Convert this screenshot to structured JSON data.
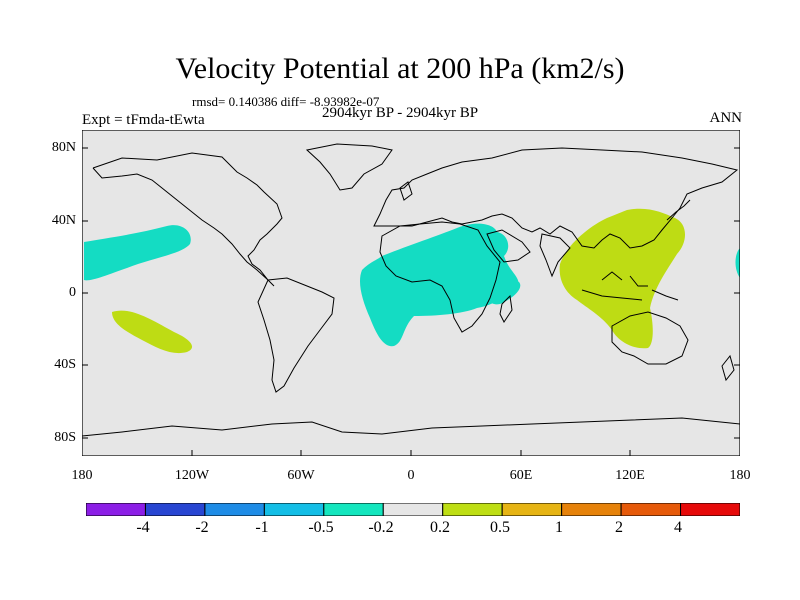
{
  "title": "Velocity Potential at 200 hPa (km2/s)",
  "stats": "rmsd= 0.140386 diff= -8.93982e-07",
  "experiment": "Expt = tFmda-tEwta",
  "period": "2904kyr BP - 2904kyr BP",
  "season": "ANN",
  "lat_labels": [
    "80N",
    "40N",
    "0",
    "40S",
    "80S"
  ],
  "lon_labels": [
    "180",
    "120W",
    "60W",
    "0",
    "60E",
    "120E",
    "180"
  ],
  "colorbar": {
    "colors": [
      "#8c1ee6",
      "#2846d2",
      "#1e8ce6",
      "#14bee6",
      "#14e6be",
      "#e6e6e6",
      "#bede14",
      "#e6b414",
      "#e6820a",
      "#e65a0a",
      "#e60a0a"
    ],
    "labels": [
      "-4",
      "-2",
      "-1",
      "-0.5",
      "-0.2",
      "0.2",
      "0.5",
      "1",
      "2",
      "4"
    ]
  },
  "colors": {
    "background": "#e6e6e6",
    "negative": "#14dcc3",
    "positive": "#bedc14"
  }
}
